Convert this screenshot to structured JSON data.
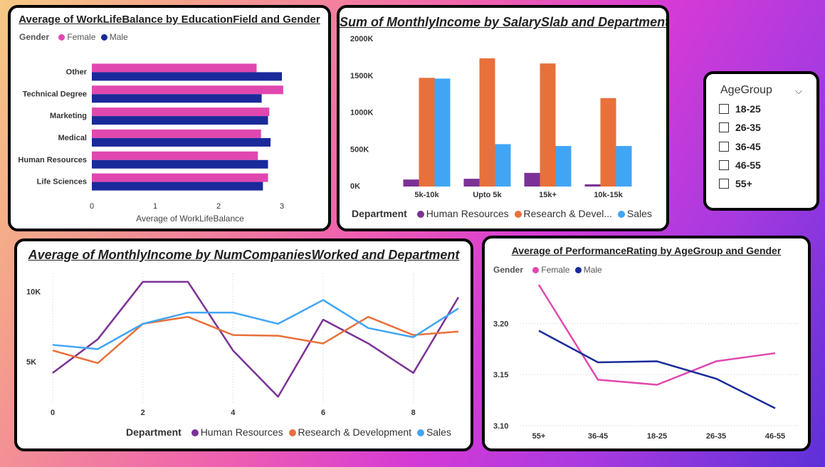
{
  "colors": {
    "female": "#e048b0",
    "male": "#1a2a9a",
    "hr": "#7b3296",
    "rd": "#e8703a",
    "sales": "#41a5f5"
  },
  "chart_data": [
    {
      "id": "wlb",
      "type": "bar",
      "orientation": "horizontal",
      "title": "Average of WorkLifeBalance by EducationField and Gender",
      "legend_title": "Gender",
      "categories": [
        "Other",
        "Technical Degree",
        "Marketing",
        "Medical",
        "Human Resources",
        "Life Sciences"
      ],
      "series": [
        {
          "name": "Female",
          "values": [
            2.6,
            3.02,
            2.8,
            2.67,
            2.62,
            2.78
          ]
        },
        {
          "name": "Male",
          "values": [
            3.0,
            2.68,
            2.78,
            2.82,
            2.78,
            2.7
          ]
        }
      ],
      "xlabel": "Average of WorkLifeBalance",
      "ylabel": "",
      "xlim": [
        0,
        3.1
      ],
      "xticks": [
        "0",
        "1",
        "2",
        "3"
      ]
    },
    {
      "id": "income",
      "type": "bar",
      "title": "Sum of MonthlyIncome by SalarySlab and Department",
      "legend_title": "Department",
      "legend_labels": [
        "Human Resources",
        "Research & Devel...",
        "Sales"
      ],
      "categories": [
        "5k-10k",
        "Upto 5k",
        "15k+",
        "10k-15k"
      ],
      "series": [
        {
          "name": "Human Resources",
          "values": [
            95000,
            105000,
            185000,
            30000
          ]
        },
        {
          "name": "Research & Development",
          "values": [
            1475000,
            1740000,
            1670000,
            1200000
          ]
        },
        {
          "name": "Sales",
          "values": [
            1465000,
            575000,
            550000,
            550000
          ]
        }
      ],
      "ylim": [
        0,
        2000000
      ],
      "yticks": [
        "0K",
        "500K",
        "1000K",
        "1500K",
        "2000K"
      ]
    },
    {
      "id": "numco",
      "type": "line",
      "title": "Average of MonthlyIncome by NumCompaniesWorked and Department",
      "legend_title": "Department",
      "x": [
        0,
        1,
        2,
        3,
        4,
        5,
        6,
        7,
        8,
        9
      ],
      "series": [
        {
          "name": "Human Resources",
          "values": [
            4200,
            6600,
            10700,
            10700,
            5800,
            2500,
            8000,
            6300,
            4200,
            9600
          ]
        },
        {
          "name": "Research & Development",
          "values": [
            5800,
            4900,
            7700,
            8200,
            6900,
            6850,
            6300,
            8200,
            6900,
            7150
          ]
        },
        {
          "name": "Sales",
          "values": [
            6200,
            5900,
            7700,
            8500,
            8500,
            7700,
            9400,
            7400,
            6750,
            8800
          ]
        }
      ],
      "xlim": [
        0,
        9
      ],
      "ylim": [
        1500,
        11300
      ],
      "xticks": [
        "0",
        "2",
        "4",
        "6",
        "8"
      ],
      "yticks": [
        "5K",
        "10K"
      ]
    },
    {
      "id": "perf",
      "type": "line",
      "title": "Average of PerformanceRating by AgeGroup and Gender",
      "legend_title": "Gender",
      "categories": [
        "55+",
        "36-45",
        "18-25",
        "26-35",
        "46-55"
      ],
      "series": [
        {
          "name": "Female",
          "values": [
            3.238,
            3.145,
            3.14,
            3.163,
            3.171
          ]
        },
        {
          "name": "Male",
          "values": [
            3.193,
            3.162,
            3.163,
            3.146,
            3.117
          ]
        }
      ],
      "ylim": [
        3.095,
        3.245
      ],
      "yticks": [
        "3.10",
        "3.15",
        "3.20"
      ]
    }
  ],
  "slicer": {
    "title": "AgeGroup",
    "options": [
      "18-25",
      "26-35",
      "36-45",
      "46-55",
      "55+"
    ]
  }
}
